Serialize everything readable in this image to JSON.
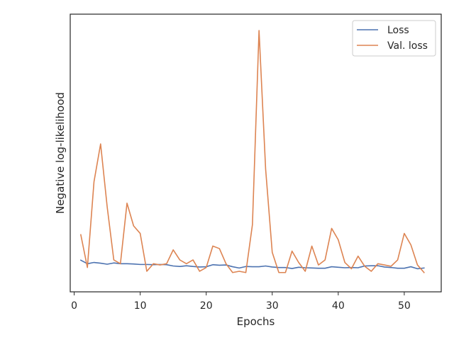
{
  "chart_data": {
    "type": "line",
    "title": "",
    "xlabel": "Epochs",
    "ylabel": "Negative log-likelihood",
    "xlim": [
      -0.6,
      55.6
    ],
    "ylim": [
      0.0,
      1.0
    ],
    "xticks": [
      0,
      10,
      20,
      30,
      40,
      50
    ],
    "yticks": [],
    "grid": false,
    "legend": "top-right",
    "x": [
      1,
      2,
      3,
      4,
      5,
      6,
      7,
      8,
      9,
      10,
      11,
      12,
      13,
      14,
      15,
      16,
      17,
      18,
      19,
      20,
      21,
      22,
      23,
      24,
      25,
      26,
      27,
      28,
      29,
      30,
      31,
      32,
      33,
      34,
      35,
      36,
      37,
      38,
      39,
      40,
      41,
      42,
      43,
      44,
      45,
      46,
      47,
      48,
      49,
      50,
      51,
      52,
      53
    ],
    "series": [
      {
        "name": "Loss",
        "color": "#4c72b0",
        "values": [
          0.089,
          0.075,
          0.08,
          0.077,
          0.073,
          0.078,
          0.075,
          0.075,
          0.074,
          0.072,
          0.072,
          0.071,
          0.072,
          0.071,
          0.066,
          0.064,
          0.067,
          0.064,
          0.062,
          0.063,
          0.071,
          0.069,
          0.07,
          0.063,
          0.058,
          0.064,
          0.063,
          0.063,
          0.066,
          0.062,
          0.06,
          0.06,
          0.056,
          0.061,
          0.059,
          0.058,
          0.057,
          0.057,
          0.063,
          0.061,
          0.059,
          0.06,
          0.059,
          0.066,
          0.067,
          0.067,
          0.062,
          0.06,
          0.057,
          0.057,
          0.063,
          0.055,
          0.058
        ]
      },
      {
        "name": "Val. loss",
        "color": "#dd8452",
        "values": [
          0.19,
          0.06,
          0.4,
          0.55,
          0.3,
          0.09,
          0.075,
          0.315,
          0.225,
          0.195,
          0.045,
          0.075,
          0.07,
          0.075,
          0.13,
          0.09,
          0.075,
          0.09,
          0.045,
          0.06,
          0.145,
          0.135,
          0.075,
          0.04,
          0.045,
          0.04,
          0.23,
          1.0,
          0.45,
          0.12,
          0.04,
          0.04,
          0.125,
          0.08,
          0.045,
          0.145,
          0.07,
          0.09,
          0.215,
          0.17,
          0.08,
          0.055,
          0.105,
          0.065,
          0.045,
          0.075,
          0.07,
          0.065,
          0.09,
          0.195,
          0.15,
          0.07,
          0.04
        ]
      }
    ]
  }
}
